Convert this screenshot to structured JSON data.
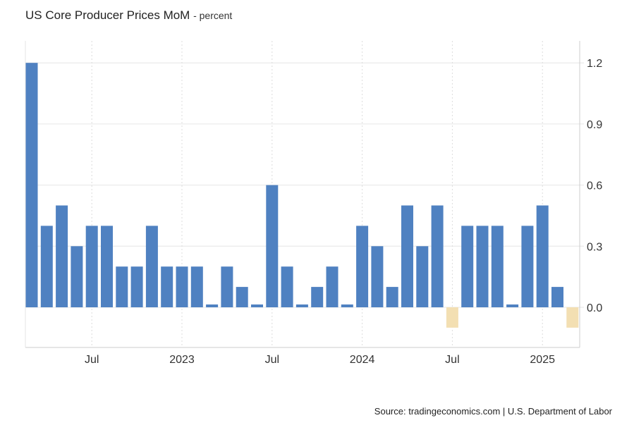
{
  "title": "US Core Producer Prices MoM",
  "unit": "- percent",
  "source": "Source: tradingeconomics.com | U.S. Department of Labor",
  "chart_data": {
    "type": "bar",
    "title": "US Core Producer Prices MoM",
    "ylabel": "percent",
    "ylim": [
      -0.2,
      1.3
    ],
    "grid": true,
    "y_axis_side": "right",
    "y_ticks": [
      "1.2",
      "0.9",
      "0.6",
      "0.3",
      "0.0"
    ],
    "x_tick_labels": [
      {
        "label": "Jul",
        "month": "2022-07"
      },
      {
        "label": "2023",
        "month": "2023-01"
      },
      {
        "label": "Jul",
        "month": "2023-07"
      },
      {
        "label": "2024",
        "month": "2024-01"
      },
      {
        "label": "Jul",
        "month": "2024-07"
      },
      {
        "label": "2025",
        "month": "2025-01"
      }
    ],
    "colors": {
      "positive": "#4f81c1",
      "negative": "#f3dfb2"
    },
    "categories": [
      "2022-03",
      "2022-04",
      "2022-05",
      "2022-06",
      "2022-07",
      "2022-08",
      "2022-09",
      "2022-10",
      "2022-11",
      "2022-12",
      "2023-01",
      "2023-02",
      "2023-03",
      "2023-04",
      "2023-05",
      "2023-06",
      "2023-07",
      "2023-08",
      "2023-09",
      "2023-10",
      "2023-11",
      "2023-12",
      "2024-01",
      "2024-02",
      "2024-03",
      "2024-04",
      "2024-05",
      "2024-06",
      "2024-07",
      "2024-08",
      "2024-09",
      "2024-10",
      "2024-11",
      "2024-12",
      "2025-01",
      "2025-02",
      "2025-03"
    ],
    "values": [
      1.2,
      0.4,
      0.5,
      0.3,
      0.4,
      0.4,
      0.2,
      0.2,
      0.4,
      0.2,
      0.2,
      0.2,
      0.0,
      0.2,
      0.1,
      0.0,
      0.6,
      0.2,
      0.0,
      0.1,
      0.2,
      0.0,
      0.4,
      0.3,
      0.1,
      0.5,
      0.3,
      0.5,
      -0.1,
      0.4,
      0.4,
      0.4,
      0.0,
      0.4,
      0.5,
      0.1,
      -0.1
    ]
  }
}
